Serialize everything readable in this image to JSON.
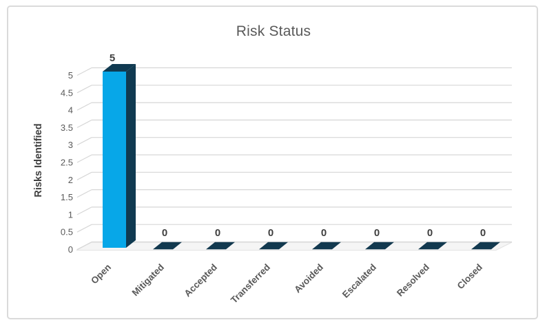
{
  "window": {
    "background": "#ffffff",
    "frame_border_color": "#dadada"
  },
  "chart_data": {
    "type": "bar",
    "style": "3d-column",
    "title": "Risk Status",
    "xlabel": "",
    "ylabel": "Risks Identified",
    "categories": [
      "Open",
      "Mitigated",
      "Accepted",
      "Transferred",
      "Avoided",
      "Escalated",
      "Resolved",
      "Closed"
    ],
    "values": [
      5,
      0,
      0,
      0,
      0,
      0,
      0,
      0
    ],
    "data_labels": [
      "5",
      "0",
      "0",
      "0",
      "0",
      "0",
      "0",
      "0"
    ],
    "ylim": [
      0,
      5
    ],
    "ytick_step": 0.5,
    "yticks": [
      "5",
      "4.5",
      "4",
      "3.5",
      "3",
      "2.5",
      "2",
      "1.5",
      "1",
      "0.5",
      "0"
    ],
    "grid": true,
    "legend": "none",
    "colors": {
      "bar_front": "#07a7e8",
      "bar_side": "#103a51",
      "zero_marker": "#12394f",
      "grid": "#d6d6d6",
      "floor_fill": "#f5f5f5",
      "floor_edge": "#e2e2e2",
      "title_text": "#595959",
      "tick_text": "#595959",
      "category_text": "#595959",
      "data_label_text": "#3f3f3f",
      "axis_title_text": "#404040"
    }
  }
}
